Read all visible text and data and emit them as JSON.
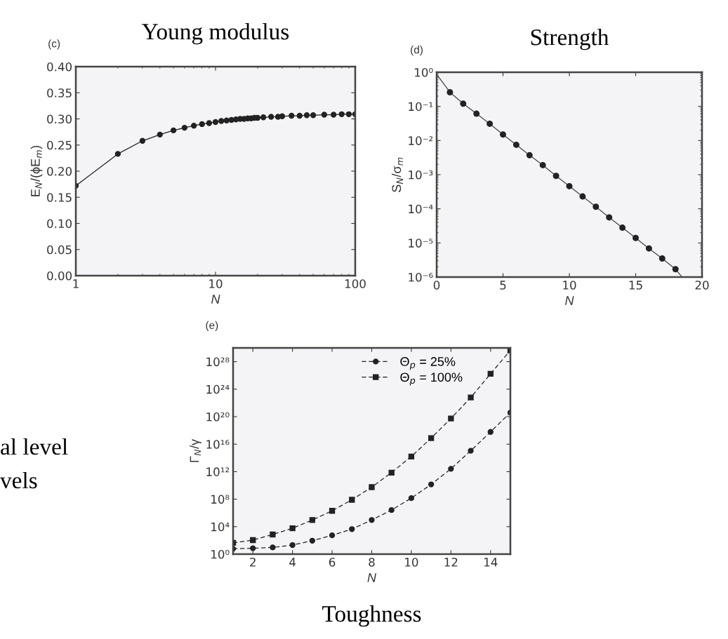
{
  "chart_data": [
    {
      "type": "line",
      "title": "Young modulus",
      "xlabel": "N",
      "ylabel": "E$_{N}$/(ϕE$_{m}$)",
      "log": "x",
      "marker": "circle",
      "line_style": "solid",
      "grid": false,
      "xlim": [
        1,
        100
      ],
      "xticks": [
        1,
        10,
        100
      ],
      "ylim": [
        0,
        0.4
      ],
      "yticks": [
        {
          "value": 0,
          "label": "0.00"
        },
        {
          "value": 0.05,
          "label": "0.05"
        },
        {
          "value": 0.1,
          "label": "0.10"
        },
        {
          "value": 0.15,
          "label": "0.15"
        },
        {
          "value": 0.2,
          "label": "0.20"
        },
        {
          "value": 0.25,
          "label": "0.25"
        },
        {
          "value": 0.3,
          "label": "0.30"
        },
        {
          "value": 0.35,
          "label": "0.35"
        },
        {
          "value": 0.4,
          "label": "0.40"
        }
      ],
      "annotations": [
        "(c)"
      ],
      "series": [
        {
          "color": "#222222",
          "x": [
            1,
            2,
            3,
            4,
            5,
            6,
            7,
            8,
            9,
            10,
            11,
            12,
            13,
            14,
            15,
            16,
            17,
            18,
            19,
            20,
            22,
            25,
            28,
            30,
            35,
            40,
            45,
            50,
            60,
            70,
            80,
            90,
            100
          ],
          "values": [
            0.172,
            0.233,
            0.258,
            0.27,
            0.278,
            0.283,
            0.287,
            0.29,
            0.292,
            0.294,
            0.296,
            0.297,
            0.298,
            0.299,
            0.3,
            0.3,
            0.301,
            0.301,
            0.302,
            0.302,
            0.303,
            0.304,
            0.304,
            0.305,
            0.306,
            0.306,
            0.307,
            0.307,
            0.308,
            0.308,
            0.309,
            0.309,
            0.309
          ]
        }
      ]
    },
    {
      "type": "line",
      "title": "Strength",
      "xlabel": "N",
      "ylabel": "S$_{N}$/σ$_{m}$",
      "log": "y",
      "grid": false,
      "xlim": [
        0,
        20
      ],
      "xticks": [
        0,
        5,
        10,
        15,
        20
      ],
      "ylim": [
        1e-06,
        1
      ],
      "yticks": [
        {
          "value": 1e-06,
          "label": "10⁻⁶"
        },
        {
          "value": 1e-05,
          "label": "10⁻⁵"
        },
        {
          "value": 0.0001,
          "label": "10⁻⁴"
        },
        {
          "value": 0.001,
          "label": "10⁻³"
        },
        {
          "value": 0.01,
          "label": "10⁻²"
        },
        {
          "value": 0.1,
          "label": "10⁻¹"
        },
        {
          "value": 1,
          "label": "10⁰"
        }
      ],
      "annotations": [
        "(d)"
      ],
      "series": [
        {
          "type": "line",
          "marker": "none",
          "line_style": "solid",
          "color": "#444444",
          "x": [
            0,
            1,
            2,
            3,
            4,
            5,
            6,
            7,
            8,
            9,
            10,
            11,
            12,
            13,
            14,
            15,
            16,
            17,
            18,
            18.5
          ],
          "values": [
            0.87,
            0.26,
            0.12,
            0.061,
            0.031,
            0.015,
            0.0075,
            0.0037,
            0.0019,
            0.00092,
            0.00046,
            0.00023,
            0.000115,
            5.6e-05,
            2.8e-05,
            1.4e-05,
            6.9e-06,
            3.5e-06,
            1.7e-06,
            1e-06
          ]
        },
        {
          "type": "scatter",
          "marker": "circle",
          "color": "#222222",
          "x": [
            1,
            2,
            3,
            4,
            5,
            6,
            7,
            8,
            9,
            10,
            11,
            12,
            13,
            14,
            15,
            16,
            17,
            18
          ],
          "values": [
            0.26,
            0.12,
            0.061,
            0.031,
            0.015,
            0.0075,
            0.0037,
            0.0019,
            0.00092,
            0.00046,
            0.00023,
            0.000115,
            5.6e-05,
            2.8e-05,
            1.4e-05,
            6.9e-06,
            3.5e-06,
            1.7e-06
          ]
        }
      ]
    },
    {
      "type": "line",
      "title": "Toughness",
      "xlabel": "N",
      "ylabel": "Γ$_{N}$/γ",
      "log": "y",
      "grid": false,
      "legend": "top right",
      "line_style": "dashed",
      "xlim": [
        1,
        15
      ],
      "xticks": [
        2,
        4,
        6,
        8,
        10,
        12,
        14
      ],
      "ylim": [
        1,
        1e+30
      ],
      "yticks": [
        {
          "value": 1,
          "label": "10⁰"
        },
        {
          "value": 10000.0,
          "label": "10⁴"
        },
        {
          "value": 100000000.0,
          "label": "10⁸"
        },
        {
          "value": 1000000000000.0,
          "label": "10¹²"
        },
        {
          "value": 1e+16,
          "label": "10¹⁶"
        },
        {
          "value": 1e+20,
          "label": "10²⁰"
        },
        {
          "value": 1e+24,
          "label": "10²⁴"
        },
        {
          "value": 1e+28,
          "label": "10²⁸"
        }
      ],
      "annotations": [
        "(e)",
        "al level",
        "vels"
      ],
      "series": [
        {
          "name": "Θ$_{p}$ = 25%",
          "marker": "circle",
          "color": "#222222",
          "x": [
            1,
            2,
            3,
            4,
            5,
            6,
            7,
            8,
            9,
            10,
            11,
            12,
            13,
            14,
            15
          ],
          "values": [
            6.0,
            7.2,
            9.5,
            21,
            91,
            550,
            4400,
            93000,
            2600000.0,
            140000000.0,
            14000000000.0,
            2600000000000.0,
            1100000000000000.0,
            6e+17,
            4e+20
          ]
        },
        {
          "name": "Θ$_{p}$ = 100%",
          "marker": "square",
          "color": "#222222",
          "x": [
            1,
            2,
            3,
            4,
            5,
            6,
            7,
            8,
            9,
            10,
            11,
            12,
            13,
            14,
            15
          ],
          "values": [
            44,
            110,
            720,
            5800,
            93000,
            2000000.0,
            81000000.0,
            5600000000.0,
            720000000000.0,
            160000000000000.0,
            7.6e+16,
            5.4e+19,
            6.2e+22,
            1.7e+26,
            4.4e+29
          ]
        }
      ]
    }
  ]
}
